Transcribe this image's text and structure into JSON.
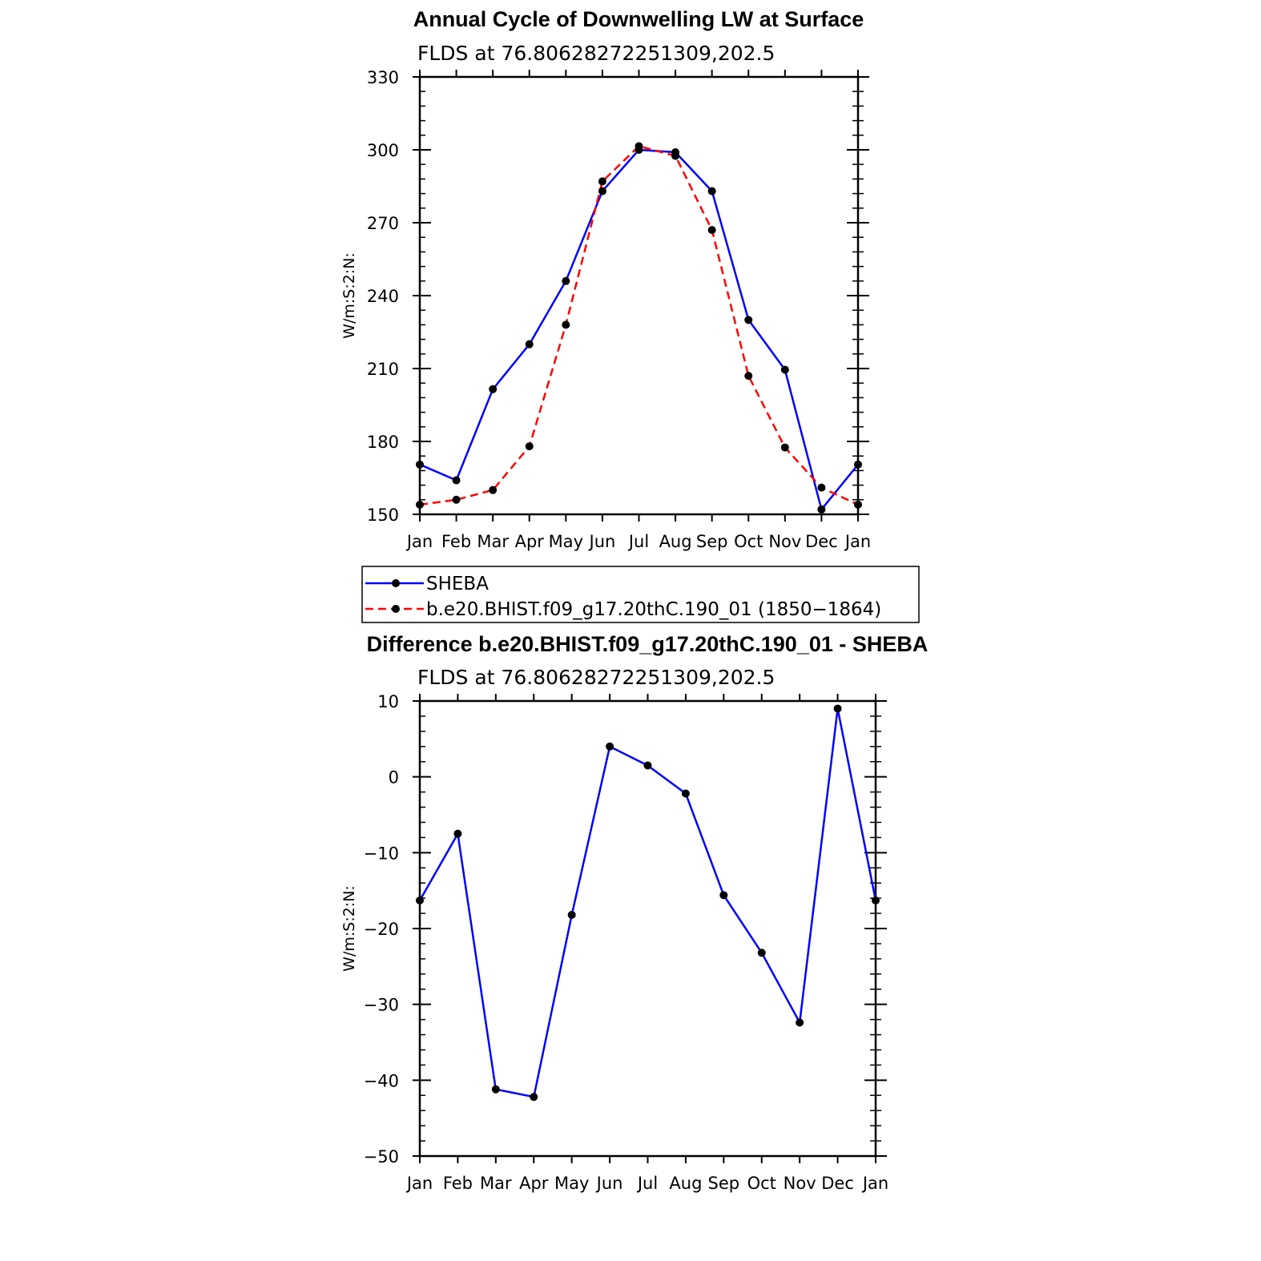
{
  "chart_data": [
    {
      "type": "line",
      "title": "Annual Cycle of Downwelling LW at Surface",
      "subtitle": "FLDS at 76.80628272251309,202.5",
      "xlabel": "",
      "ylabel": "W/m:S:2:N:",
      "categories": [
        "Jan",
        "Feb",
        "Mar",
        "Apr",
        "May",
        "Jun",
        "Jul",
        "Aug",
        "Sep",
        "Oct",
        "Nov",
        "Dec",
        "Jan"
      ],
      "ylim": [
        150,
        330
      ],
      "yticks": [
        150,
        180,
        210,
        240,
        270,
        300,
        330
      ],
      "ytick_labels": [
        "150",
        "180",
        "210",
        "240",
        "270",
        "300",
        "330"
      ],
      "series": [
        {
          "name": "SHEBA",
          "color": "#0000ff",
          "dashed": false,
          "values": [
            170.5,
            164,
            201.5,
            220,
            246,
            283,
            300,
            299,
            283,
            230,
            209.5,
            152,
            170.5
          ]
        },
        {
          "name": "b.e20.BHIST.f09_g17.20thC.190_01 (1850−1864)",
          "color": "#ff0000",
          "dashed": true,
          "values": [
            154,
            156,
            160,
            178,
            228,
            287,
            301.5,
            297.5,
            267,
            207,
            177.5,
            161,
            154
          ]
        }
      ],
      "legend": {
        "position": "bottom",
        "entries": [
          "SHEBA",
          "b.e20.BHIST.f09_g17.20thC.190_01 (1850−1864)"
        ]
      }
    },
    {
      "type": "line",
      "title": "Difference b.e20.BHIST.f09_g17.20thC.190_01 - SHEBA",
      "subtitle": "FLDS at 76.80628272251309,202.5",
      "xlabel": "",
      "ylabel": "W/m:S:2:N:",
      "categories": [
        "Jan",
        "Feb",
        "Mar",
        "Apr",
        "May",
        "Jun",
        "Jul",
        "Aug",
        "Sep",
        "Oct",
        "Nov",
        "Dec",
        "Jan"
      ],
      "ylim": [
        -50,
        10
      ],
      "yticks": [
        -50,
        -40,
        -30,
        -20,
        -10,
        0,
        10
      ],
      "ytick_labels": [
        "−50",
        "−40",
        "−30",
        "−20",
        "−10",
        "0",
        "10"
      ],
      "series": [
        {
          "color": "#0000ff",
          "dashed": false,
          "values": [
            -16.3,
            -7.5,
            -41.2,
            -42.2,
            -18.2,
            4,
            1.5,
            -2.2,
            -15.6,
            -23.2,
            -32.4,
            9,
            -16.3
          ]
        }
      ]
    }
  ]
}
